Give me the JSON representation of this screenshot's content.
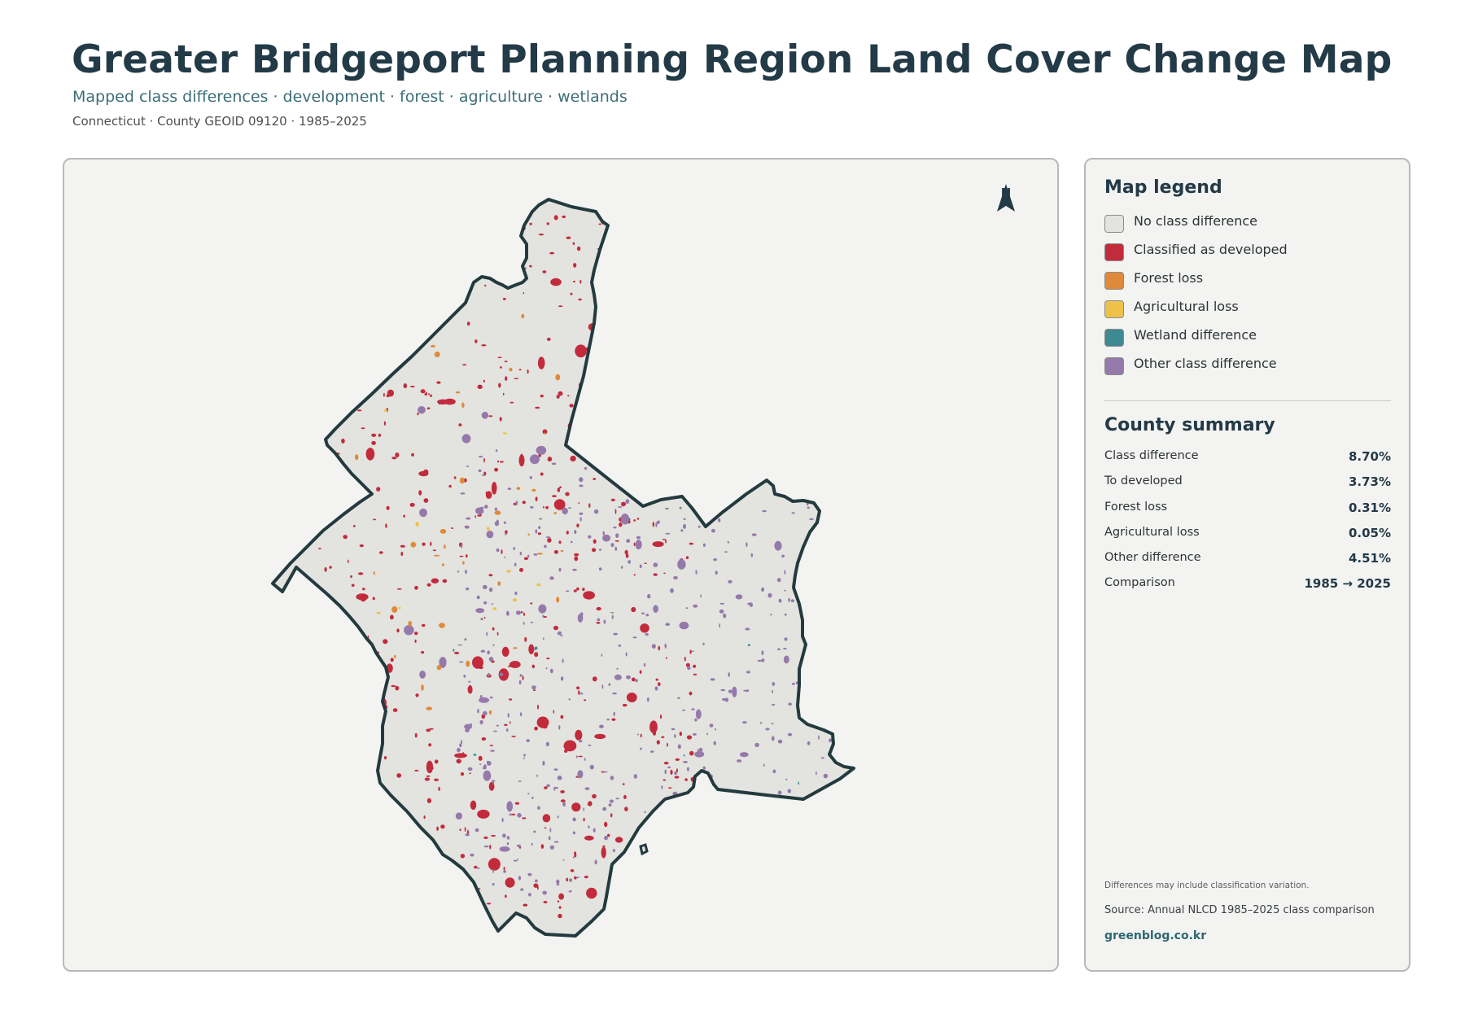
{
  "header": {
    "title": "Greater Bridgeport Planning Region Land Cover Change Map",
    "subtitle": "Mapped class differences · development · forest · agriculture · wetlands",
    "meta": "Connecticut · County GEOID 09120 · 1985–2025"
  },
  "map": {
    "north_label": "N",
    "colors": {
      "no_difference": "#e3e3df",
      "developed": "#c22b3c",
      "forest_loss": "#de8a3a",
      "agricultural_loss": "#eec24a",
      "wetland": "#3e8a93",
      "other": "#9479aa",
      "boundary": "#233a3f"
    }
  },
  "legend": {
    "title": "Map legend",
    "items": [
      {
        "label": "No class difference",
        "color": "#e3e3df"
      },
      {
        "label": "Classified as developed",
        "color": "#c22b3c"
      },
      {
        "label": "Forest loss",
        "color": "#de8a3a"
      },
      {
        "label": "Agricultural loss",
        "color": "#eec24a"
      },
      {
        "label": "Wetland difference",
        "color": "#3e8a93"
      },
      {
        "label": "Other class difference",
        "color": "#9479aa"
      }
    ]
  },
  "summary": {
    "title": "County summary",
    "rows": [
      {
        "label": "Class difference",
        "value": "8.70%"
      },
      {
        "label": "To developed",
        "value": "3.73%"
      },
      {
        "label": "Forest loss",
        "value": "0.31%"
      },
      {
        "label": "Agricultural loss",
        "value": "0.05%"
      },
      {
        "label": "Other difference",
        "value": "4.51%"
      },
      {
        "label": "Comparison",
        "value": "1985 → 2025"
      }
    ]
  },
  "footer": {
    "note": "Differences may include classification variation.",
    "source": "Source: Annual NLCD 1985–2025 class comparison",
    "brand": "greenblog.co.kr"
  }
}
